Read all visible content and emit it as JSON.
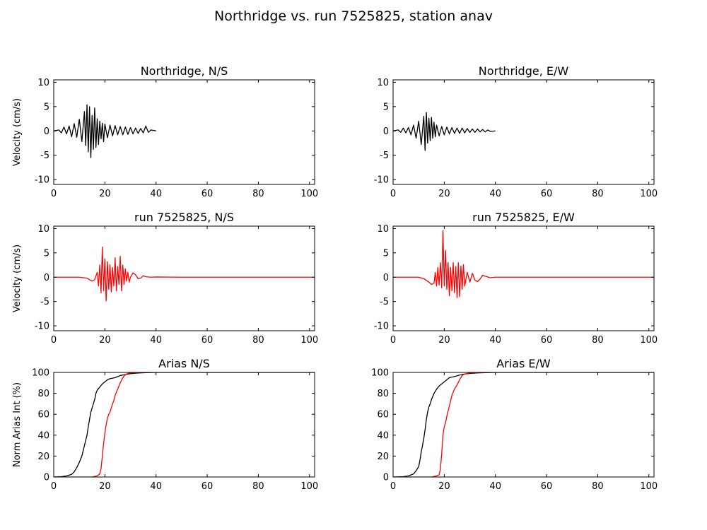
{
  "figure": {
    "title": "Northridge vs. run 7525825, station anav"
  },
  "colors": {
    "observed": "#000000",
    "simulated": "#ff0000",
    "axes": "#000000",
    "background": "#ffffff"
  },
  "chart_data": [
    {
      "type": "line",
      "title": "Northridge, N/S",
      "xlabel": "",
      "ylabel": "Velocity (cm/s)",
      "xlim": [
        0,
        102
      ],
      "ylim": [
        -11,
        10.5
      ],
      "xticks": [
        0,
        20,
        40,
        60,
        80,
        100
      ],
      "yticks": [
        10,
        5,
        0,
        -5,
        -10
      ],
      "grid": false,
      "series": [
        {
          "color": "#000000",
          "x": [
            0,
            2,
            3,
            4,
            5,
            6,
            7,
            8,
            9,
            10,
            11,
            12,
            12.5,
            13,
            13.5,
            14,
            14.5,
            15,
            15.5,
            16,
            16.5,
            17,
            17.5,
            18,
            18.5,
            19,
            19.5,
            20,
            21,
            22,
            23,
            24,
            25,
            26,
            27,
            28,
            29,
            30,
            31,
            32,
            33,
            34,
            35,
            36,
            37,
            38,
            40
          ],
          "y": [
            0,
            0.2,
            -0.4,
            0.8,
            -0.6,
            1.0,
            -1.2,
            1.5,
            -1.3,
            2.4,
            -2.2,
            4.0,
            -3.0,
            5.4,
            -4.3,
            5.0,
            -5.5,
            3.2,
            -3.8,
            4.7,
            -3.4,
            2.5,
            -2.8,
            2.0,
            -1.6,
            1.6,
            -2.2,
            1.4,
            -1.4,
            1.2,
            -1.0,
            1.1,
            -0.8,
            0.9,
            -0.8,
            0.8,
            -0.7,
            0.7,
            -0.6,
            0.6,
            -0.5,
            0.5,
            -0.4,
            1.0,
            -0.3,
            0.2,
            0
          ]
        }
      ]
    },
    {
      "type": "line",
      "title": "Northridge, E/W",
      "xlabel": "",
      "ylabel": "",
      "xlim": [
        0,
        102
      ],
      "ylim": [
        -11,
        10.5
      ],
      "xticks": [
        0,
        20,
        40,
        60,
        80,
        100
      ],
      "yticks": [
        10,
        5,
        0,
        -5,
        -10
      ],
      "grid": false,
      "series": [
        {
          "color": "#000000",
          "x": [
            0,
            2,
            3,
            4,
            5,
            6,
            7,
            8,
            9,
            10,
            11,
            12,
            12.5,
            13,
            13.5,
            14,
            14.5,
            15,
            15.5,
            16,
            16.5,
            17,
            18,
            19,
            20,
            21,
            22,
            23,
            24,
            25,
            26,
            27,
            28,
            29,
            30,
            31,
            32,
            33,
            34,
            35,
            36,
            37,
            38,
            40
          ],
          "y": [
            0,
            0.2,
            -0.3,
            0.6,
            -0.4,
            0.7,
            -0.8,
            1.2,
            -1.5,
            2.0,
            -2.8,
            3.0,
            -4.0,
            3.8,
            -2.5,
            2.6,
            -2.0,
            2.8,
            -1.5,
            1.8,
            -1.2,
            1.2,
            -1.0,
            0.9,
            -0.8,
            0.8,
            -0.6,
            0.7,
            -0.5,
            0.6,
            -0.5,
            0.6,
            -0.4,
            0.5,
            -0.3,
            0.4,
            -0.3,
            0.4,
            -0.2,
            0.3,
            -0.2,
            0.2,
            -0.1,
            0
          ]
        }
      ]
    },
    {
      "type": "line",
      "title": "run 7525825, N/S",
      "xlabel": "",
      "ylabel": "Velocity (cm/s)",
      "xlim": [
        0,
        102
      ],
      "ylim": [
        -11,
        10.5
      ],
      "xticks": [
        0,
        20,
        40,
        60,
        80,
        100
      ],
      "yticks": [
        10,
        5,
        0,
        -5,
        -10
      ],
      "grid": false,
      "series": [
        {
          "color": "#ff0000",
          "x": [
            0,
            10,
            13,
            15,
            16,
            17,
            17.5,
            18,
            18.5,
            19,
            19.5,
            20,
            20.5,
            21,
            21.5,
            22,
            22.5,
            23,
            23.5,
            24,
            24.5,
            25,
            25.5,
            26,
            26.5,
            27,
            27.5,
            28,
            28.5,
            29,
            29.5,
            30,
            31,
            32,
            33,
            34,
            35,
            36,
            38,
            40,
            50,
            60,
            70,
            80,
            90,
            102
          ],
          "y": [
            0,
            0,
            -0.2,
            -0.8,
            -0.5,
            1.0,
            -1.8,
            2.5,
            -3.2,
            6.2,
            -2.8,
            3.8,
            -4.9,
            3.2,
            -2.5,
            2.6,
            -3.0,
            2.0,
            -1.8,
            4.0,
            -2.8,
            2.2,
            -1.5,
            4.3,
            -2.8,
            2.5,
            -1.5,
            1.7,
            -0.8,
            1.0,
            -1.0,
            0,
            0.9,
            0.5,
            -0.3,
            -0.2,
            0.3,
            0.1,
            0,
            0.05,
            0,
            0,
            0,
            0,
            0,
            0
          ]
        }
      ]
    },
    {
      "type": "line",
      "title": "run 7525825, E/W",
      "xlabel": "",
      "ylabel": "",
      "xlim": [
        0,
        102
      ],
      "ylim": [
        -11,
        10.5
      ],
      "xticks": [
        0,
        20,
        40,
        60,
        80,
        100
      ],
      "yticks": [
        10,
        5,
        0,
        -5,
        -10
      ],
      "grid": false,
      "series": [
        {
          "color": "#ff0000",
          "x": [
            0,
            10,
            12,
            14,
            15,
            16,
            16.5,
            17,
            17.5,
            18,
            18.5,
            19,
            19.5,
            20,
            20.5,
            21,
            21.5,
            22,
            22.5,
            23,
            23.5,
            24,
            24.5,
            25,
            25.5,
            26,
            26.5,
            27,
            27.5,
            28,
            29,
            30,
            31,
            32,
            33,
            34,
            35,
            36,
            38,
            40,
            50,
            60,
            70,
            80,
            90,
            102
          ],
          "y": [
            0,
            0,
            -0.3,
            -1.0,
            -1.5,
            -1.2,
            1.0,
            -1.8,
            2.0,
            -1.6,
            3.0,
            -2.2,
            9.6,
            -1.8,
            5.5,
            -2.5,
            3.0,
            -3.8,
            2.0,
            -2.8,
            3.0,
            -3.2,
            2.2,
            -4.2,
            3.0,
            -4.0,
            2.3,
            -2.5,
            2.6,
            -1.8,
            1.0,
            -1.0,
            0.8,
            -0.6,
            -0.9,
            -0.4,
            0.4,
            0.2,
            -0.1,
            0,
            0,
            0,
            0,
            0,
            0,
            0
          ]
        }
      ]
    },
    {
      "type": "line",
      "title": "Arias N/S",
      "xlabel": "",
      "ylabel": "Norm Arias Int (%)",
      "xlim": [
        0,
        102
      ],
      "ylim": [
        0,
        100
      ],
      "xticks": [
        0,
        20,
        40,
        60,
        80,
        100
      ],
      "yticks": [
        100,
        80,
        60,
        40,
        20,
        0
      ],
      "grid": false,
      "series": [
        {
          "color": "#000000",
          "x": [
            0,
            3,
            5,
            7,
            8,
            9,
            10,
            11,
            12,
            13,
            13.5,
            14,
            14.5,
            15,
            15.5,
            16,
            16.5,
            17,
            18,
            19,
            20,
            21,
            22,
            24,
            26,
            28,
            30,
            33,
            36,
            40,
            50,
            102
          ],
          "y": [
            0,
            0.3,
            1,
            2.5,
            5,
            9,
            14,
            20,
            30,
            40,
            48,
            55,
            62,
            66,
            70,
            74,
            80,
            83,
            86,
            89,
            91,
            93,
            94,
            95,
            97,
            98,
            98.8,
            99.4,
            99.8,
            100,
            100,
            100
          ]
        },
        {
          "color": "#ff0000",
          "x": [
            0,
            15,
            17,
            18,
            18.5,
            19,
            19.5,
            20,
            20.5,
            21,
            21.5,
            22,
            22.5,
            23,
            23.5,
            24,
            25,
            26,
            27,
            28,
            29,
            30,
            32,
            34,
            40,
            50,
            102
          ],
          "y": [
            0,
            0,
            1,
            3,
            8,
            20,
            32,
            42,
            50,
            56,
            60,
            62,
            66,
            70,
            73,
            78,
            84,
            90,
            95,
            98,
            99,
            99.5,
            99.8,
            100,
            100,
            100,
            100
          ]
        }
      ]
    },
    {
      "type": "line",
      "title": "Arias E/W",
      "xlabel": "",
      "ylabel": "",
      "xlim": [
        0,
        102
      ],
      "ylim": [
        0,
        100
      ],
      "xticks": [
        0,
        20,
        40,
        60,
        80,
        100
      ],
      "yticks": [
        100,
        80,
        60,
        40,
        20,
        0
      ],
      "grid": false,
      "series": [
        {
          "color": "#000000",
          "x": [
            0,
            4,
            6,
            8,
            9,
            10,
            10.5,
            11,
            11.5,
            12,
            12.5,
            13,
            13.5,
            14,
            14.5,
            15,
            16,
            17,
            18,
            19,
            20,
            21,
            22,
            24,
            26,
            28,
            30,
            33,
            36,
            40,
            50,
            102
          ],
          "y": [
            0,
            0.3,
            1,
            3,
            6,
            10,
            16,
            24,
            30,
            37,
            45,
            55,
            62,
            67,
            70,
            74,
            80,
            84,
            87,
            89,
            91,
            93,
            95,
            96,
            97.5,
            98.5,
            99,
            99.5,
            99.8,
            100,
            100,
            100
          ]
        },
        {
          "color": "#ff0000",
          "x": [
            0,
            15,
            17,
            18,
            18.5,
            19,
            19.5,
            20,
            20.5,
            21,
            22,
            23,
            24,
            25,
            26,
            27,
            28,
            29,
            30,
            32,
            35,
            40,
            50,
            102
          ],
          "y": [
            0,
            0,
            1,
            2,
            8,
            22,
            40,
            48,
            52,
            58,
            68,
            78,
            84,
            88,
            93,
            97,
            98.5,
            99,
            99.5,
            99.8,
            100,
            100,
            100,
            100
          ]
        }
      ]
    }
  ]
}
